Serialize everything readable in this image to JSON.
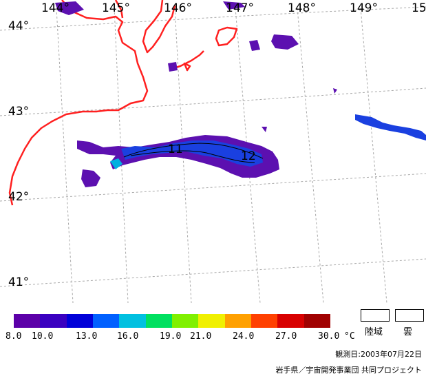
{
  "map": {
    "lon_labels": [
      "144°",
      "145°",
      "146°",
      "147°",
      "148°",
      "149°",
      "15"
    ],
    "lat_labels": [
      "44°",
      "43°",
      "42°",
      "41°"
    ],
    "contour_labels": [
      "11",
      "12"
    ]
  },
  "colorbar": {
    "colors": [
      "#5c00a8",
      "#3a00c0",
      "#0000d8",
      "#0060ff",
      "#00c0e0",
      "#00e060",
      "#80f000",
      "#f0f000",
      "#ffa000",
      "#ff4000",
      "#d80000",
      "#a00000"
    ],
    "tick_labels": [
      "8.0",
      "10.0",
      "13.0",
      "16.0",
      "19.0",
      "21.0",
      "24.0",
      "27.0",
      "30.0"
    ],
    "unit": "°C"
  },
  "legend": {
    "land_label": "陸域",
    "cloud_label": "雲"
  },
  "footer": {
    "date_line": "観測日:2003年07月22日",
    "credit_line": "岩手県／宇宙開発事業団 共同プロジェクト"
  },
  "colors": {
    "coastline": "#ff2020",
    "gridline": "#a0a0a0",
    "sst_purple": "#5c10b0",
    "sst_blue": "#1a40e0"
  }
}
